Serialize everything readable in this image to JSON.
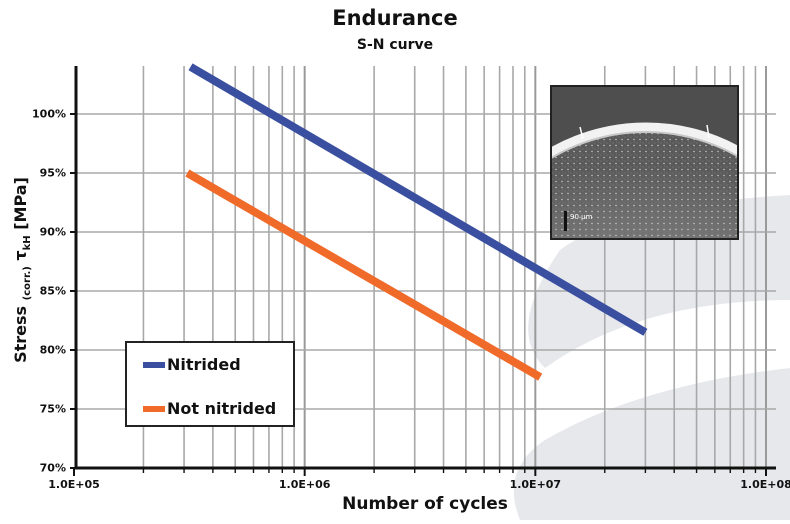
{
  "chart_data": {
    "type": "line",
    "title": "Endurance",
    "subtitle": "S-N curve",
    "xlabel": "Number of cycles",
    "ylabel": {
      "main": "Stress",
      "sub1": "(corr.)",
      "symbol": "τ",
      "sub2": "kH",
      "unit": "[MPa]"
    },
    "x_scale": "log",
    "xlim": [
      100000,
      120000000
    ],
    "ylim": [
      70,
      104
    ],
    "grid": true,
    "x_ticks": [
      {
        "value": 100000,
        "label": "1.0E+05"
      },
      {
        "value": 1000000,
        "label": "1.0E+06"
      },
      {
        "value": 10000000,
        "label": "1.0E+07"
      },
      {
        "value": 100000000,
        "label": "1.0E+08"
      }
    ],
    "y_ticks": [
      {
        "value": 70,
        "label": "70%"
      },
      {
        "value": 75,
        "label": "75%"
      },
      {
        "value": 80,
        "label": "80%"
      },
      {
        "value": 85,
        "label": "85%"
      },
      {
        "value": 90,
        "label": "90%"
      },
      {
        "value": 95,
        "label": "95%"
      },
      {
        "value": 100,
        "label": "100%"
      }
    ],
    "legend_position": "bottom-left",
    "series": [
      {
        "name": "Nitrided",
        "color": "#3a4fa0",
        "points": [
          {
            "x": 320000,
            "y": 104
          },
          {
            "x": 30000000,
            "y": 81.5
          }
        ]
      },
      {
        "name": "Not nitrided",
        "color": "#f06a2a",
        "points": [
          {
            "x": 310000,
            "y": 95
          },
          {
            "x": 10500000,
            "y": 77.7
          }
        ]
      }
    ],
    "inset": {
      "description_icon": "micrograph-image",
      "scale_label": "90 µm"
    }
  }
}
